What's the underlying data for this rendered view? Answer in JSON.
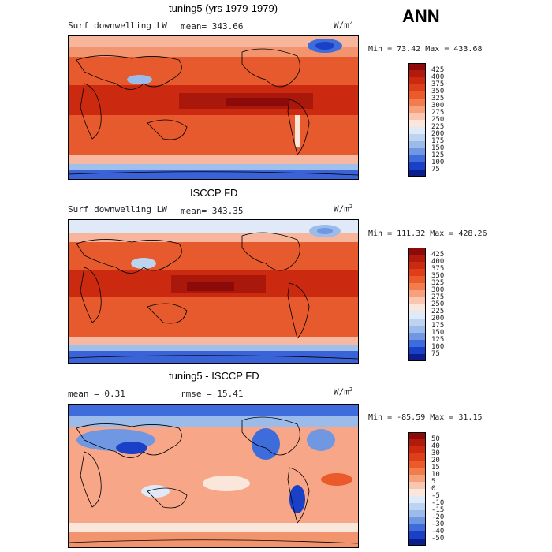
{
  "season": "ANN",
  "units_base": "W/m",
  "units_exp": "2",
  "panels": [
    {
      "title": "tuning5 (yrs 1979-1979)",
      "left_text": "Surf downwelling LW",
      "middle_text": "mean= 343.66",
      "minmax": "Min =  73.42 Max = 433.68",
      "cbar_labels": [
        "425",
        "400",
        "375",
        "350",
        "325",
        "300",
        "275",
        "250",
        "225",
        "200",
        "175",
        "150",
        "125",
        "100",
        "75"
      ],
      "cbar_colors": [
        "#8c0a0a",
        "#b11a0c",
        "#cc2a10",
        "#de3e18",
        "#ea5a2a",
        "#f27c4c",
        "#f7a07c",
        "#fac6b0",
        "#fbe6dc",
        "#dfe9f7",
        "#bcd4f0",
        "#9bbcea",
        "#6f97e2",
        "#3f6cdb",
        "#1a40c7",
        "#0c1e8c"
      ]
    },
    {
      "title": "ISCCP FD",
      "left_text": "Surf downwelling LW",
      "middle_text": "mean= 343.35",
      "minmax": "Min = 111.32 Max = 428.26",
      "cbar_labels": [
        "425",
        "400",
        "375",
        "350",
        "325",
        "300",
        "275",
        "250",
        "225",
        "200",
        "175",
        "150",
        "125",
        "100",
        "75"
      ],
      "cbar_colors": [
        "#8c0a0a",
        "#b11a0c",
        "#cc2a10",
        "#de3e18",
        "#ea5a2a",
        "#f27c4c",
        "#f7a07c",
        "#fac6b0",
        "#fbe6dc",
        "#dfe9f7",
        "#bcd4f0",
        "#9bbcea",
        "#6f97e2",
        "#3f6cdb",
        "#1a40c7",
        "#0c1e8c"
      ]
    },
    {
      "title": "tuning5 - ISCCP FD",
      "left_text": "mean =    0.31",
      "middle_text": "rmse =   15.41",
      "minmax": "Min = -85.59 Max =  31.15",
      "cbar_labels": [
        "50",
        "40",
        "30",
        "20",
        "15",
        "10",
        "5",
        "0",
        "-5",
        "-10",
        "-15",
        "-20",
        "-30",
        "-40",
        "-50"
      ],
      "cbar_colors": [
        "#8c0a0a",
        "#b11a0c",
        "#cc2a10",
        "#de3e18",
        "#ea5a2a",
        "#f27c4c",
        "#f7a07c",
        "#fac6b0",
        "#fbe6dc",
        "#dfe9f7",
        "#bcd4f0",
        "#9bbcea",
        "#6f97e2",
        "#3f6cdb",
        "#1a40c7",
        "#0c1e8c"
      ]
    }
  ]
}
